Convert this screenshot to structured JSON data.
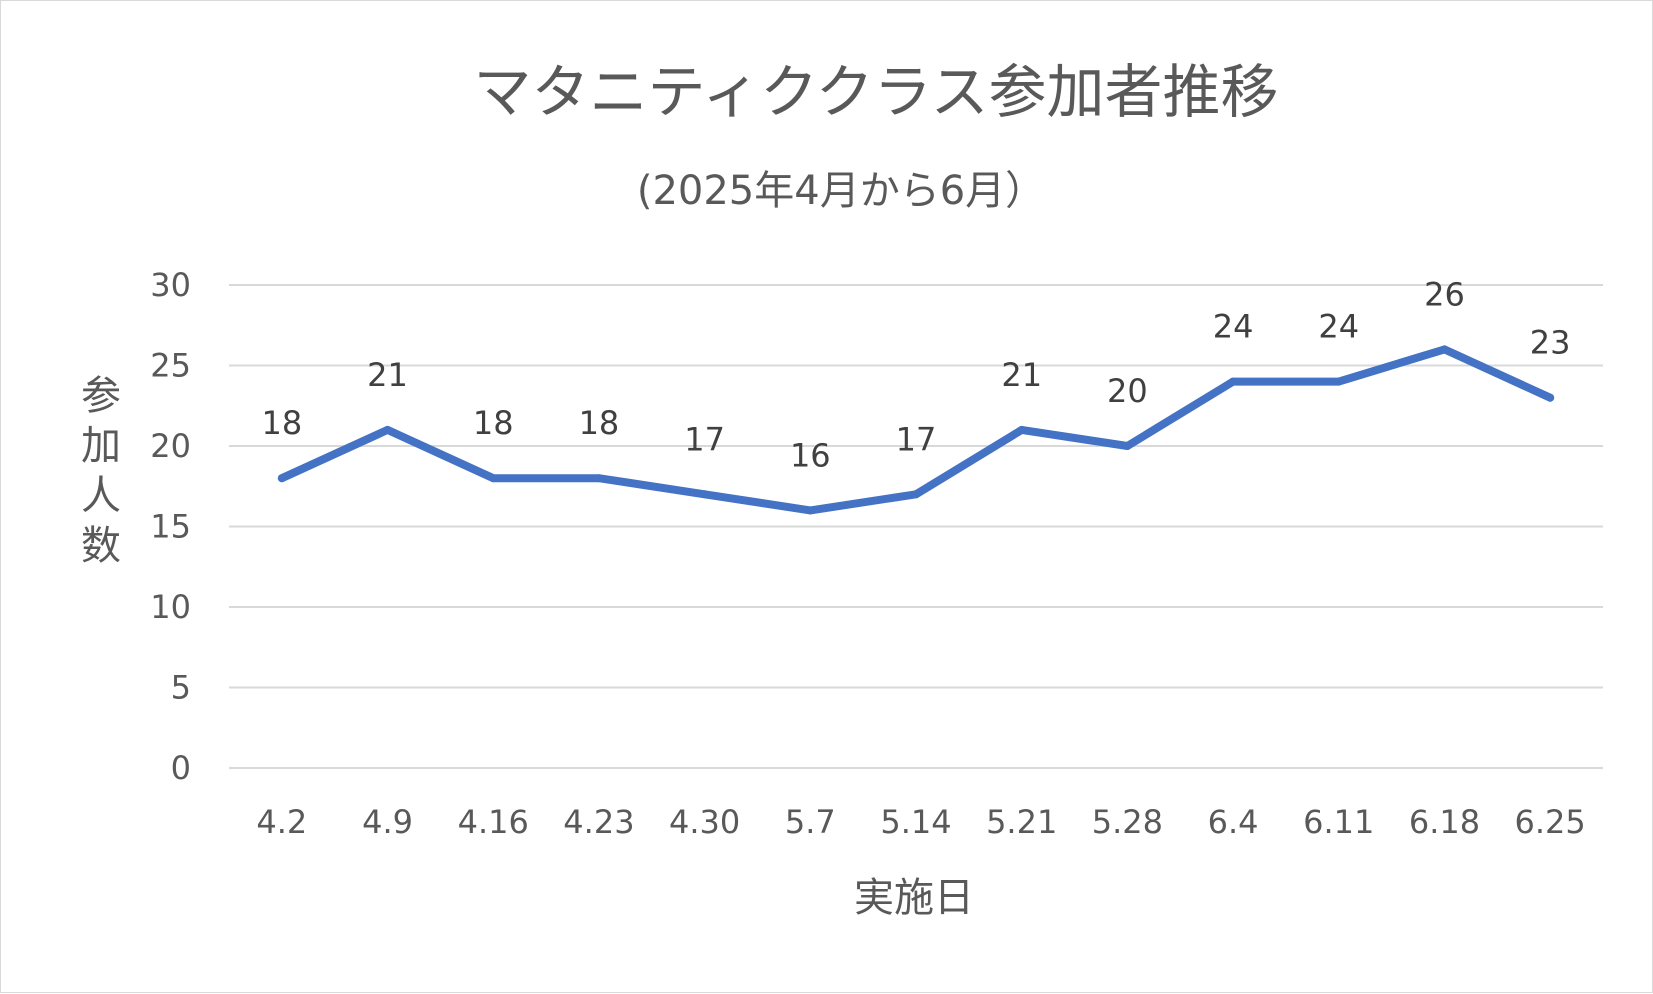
{
  "chart_data": {
    "type": "line",
    "title": "マタニティククラス参加者推移",
    "subtitle": "(2025年4月から6月）",
    "xlabel": "実施日",
    "ylabel": "参加人数",
    "categories": [
      "4.2",
      "4.9",
      "4.16",
      "4.23",
      "4.30",
      "5.7",
      "5.14",
      "5.21",
      "5.28",
      "6.4",
      "6.11",
      "6.18",
      "6.25"
    ],
    "series": [
      {
        "values": [
          18,
          21,
          18,
          18,
          17,
          16,
          17,
          21,
          20,
          24,
          24,
          26,
          23
        ]
      }
    ],
    "ylim": [
      0,
      30
    ],
    "yticks": [
      "0",
      "5",
      "10",
      "15",
      "20",
      "25",
      "30"
    ],
    "grid": true,
    "data_labels": true,
    "colors": {
      "series": "#4472c4"
    }
  }
}
